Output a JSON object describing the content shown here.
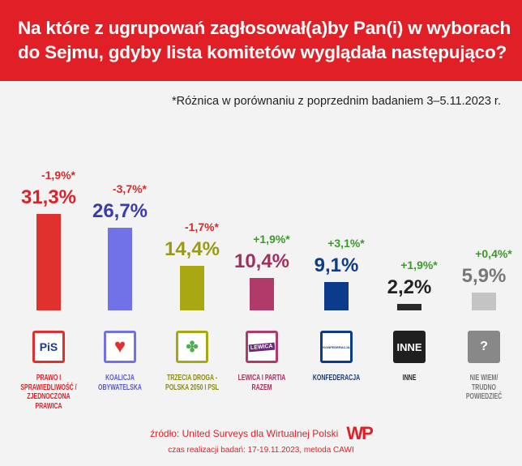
{
  "header": {
    "title_line1": "Na które z ugrupowań zagłosował(a)by Pan(i) w wyborach",
    "title_line2": "do Sejmu, gdyby lista komitetów wyglądała następująco?"
  },
  "note": "*Różnica w porównaniu z poprzednim badaniem 3–5.11.2023 r.",
  "chart_data": {
    "type": "bar",
    "categories": [
      "PRAWO I SPRAWIEDLIWOŚĆ / ZJEDNOCZONA PRAWICA",
      "KOALICJA OBYWATELSKA",
      "TRZECIA DROGA - POLSKA 2050 I PSL",
      "LEWICA I PARTIA RAZEM",
      "KONFEDERACJA",
      "INNE",
      "NIE WIEM/ TRUDNO POWIEDZIEĆ"
    ],
    "values": [
      31.3,
      26.7,
      14.4,
      10.4,
      9.1,
      2.2,
      5.9
    ],
    "value_labels": [
      "31,3%",
      "26,7%",
      "14,4%",
      "10,4%",
      "9,1%",
      "2,2%",
      "5,9%"
    ],
    "change_labels": [
      "-1,9%*",
      "-3,7%*",
      "-1,7%*",
      "+1,9%*",
      "+3,1%*",
      "+1,9%*",
      "+0,4%*"
    ],
    "changes": [
      -1.9,
      -3.7,
      -1.7,
      1.9,
      3.1,
      1.9,
      0.4
    ],
    "colors": [
      "#e0312f",
      "#7272e8",
      "#a8a812",
      "#b03a6a",
      "#0d3b8c",
      "#2a2a2a",
      "#c4c4c4"
    ],
    "value_colors": [
      "#e01f26",
      "#3b3bb0",
      "#9a9a10",
      "#a0305e",
      "#0d3b8c",
      "#222222",
      "#777777"
    ],
    "label_colors": [
      "#e01f26",
      "#5a5ac8",
      "#8a8a10",
      "#a0305e",
      "#1d3b6c",
      "#222222",
      "#777777"
    ],
    "change_colors": {
      "negative": "#d42a2a",
      "positive": "#3c9a2a"
    },
    "logos": [
      {
        "icon": "pis-logo",
        "text": "PiS"
      },
      {
        "icon": "heart-logo",
        "text": ""
      },
      {
        "icon": "trzecia-droga-logo",
        "text": ""
      },
      {
        "icon": "lewica-logo",
        "text": "LEWICA"
      },
      {
        "icon": "konfederacja-logo",
        "text": "KONFEDERACJA"
      },
      {
        "icon": "inne-logo",
        "text": "INNE"
      },
      {
        "icon": "question-logo",
        "text": "?"
      }
    ],
    "ylim": [
      0,
      31.3
    ]
  },
  "footer": {
    "source": "źródło: United Surveys dla Wirtualnej Polski",
    "logo": "WP",
    "date": "czas realizacji badań: 17-19.11.2023, metoda CAWI"
  }
}
